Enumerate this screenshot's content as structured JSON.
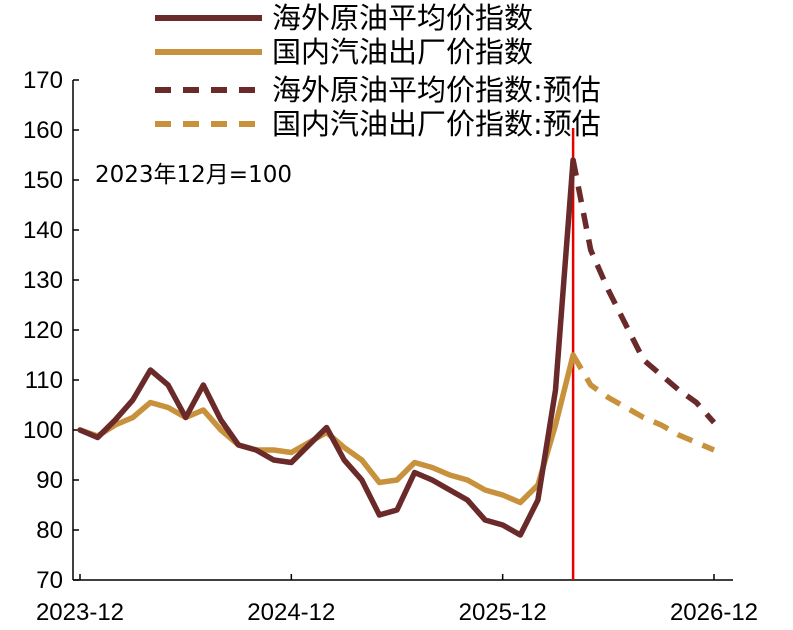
{
  "chart_data": {
    "type": "line",
    "annotation": "2023年12月=100",
    "x_start": "2023-12",
    "x_end": "2026-12",
    "x_ticks": [
      "2023-12",
      "2024-12",
      "2025-12",
      "2026-12"
    ],
    "ylim": [
      70,
      170
    ],
    "y_ticks": [
      70,
      80,
      90,
      100,
      110,
      120,
      130,
      140,
      150,
      160,
      170
    ],
    "grid": false,
    "legend_position": "top",
    "vline_x": "2026-04",
    "series": [
      {
        "name": "海外原油平均价指数",
        "color": "#6b2a2a",
        "dashed": false,
        "x": [
          "2023-12",
          "2024-01",
          "2024-02",
          "2024-03",
          "2024-04",
          "2024-05",
          "2024-06",
          "2024-07",
          "2024-08",
          "2024-09",
          "2024-10",
          "2024-11",
          "2024-12",
          "2025-01",
          "2025-02",
          "2025-03",
          "2025-04",
          "2025-05",
          "2025-06",
          "2025-07",
          "2025-08",
          "2025-09",
          "2025-10",
          "2025-11",
          "2025-12",
          "2026-01",
          "2026-02",
          "2026-03",
          "2026-04"
        ],
        "values": [
          100,
          98.5,
          102,
          106,
          112,
          109,
          102.5,
          109,
          102,
          97,
          96,
          94,
          93.5,
          97,
          100.5,
          94,
          90,
          83,
          84,
          91.5,
          90,
          88,
          86,
          82,
          81,
          79,
          86,
          108,
          154
        ]
      },
      {
        "name": "国内汽油出厂价指数",
        "color": "#c8913c",
        "dashed": false,
        "x": [
          "2023-12",
          "2024-01",
          "2024-02",
          "2024-03",
          "2024-04",
          "2024-05",
          "2024-06",
          "2024-07",
          "2024-08",
          "2024-09",
          "2024-10",
          "2024-11",
          "2024-12",
          "2025-01",
          "2025-02",
          "2025-03",
          "2025-04",
          "2025-05",
          "2025-06",
          "2025-07",
          "2025-08",
          "2025-09",
          "2025-10",
          "2025-11",
          "2025-12",
          "2026-01",
          "2026-02",
          "2026-03",
          "2026-04"
        ],
        "values": [
          100,
          98.8,
          101,
          102.5,
          105.5,
          104.5,
          102.5,
          104,
          100,
          97,
          96,
          96,
          95.5,
          97.5,
          99.5,
          96.5,
          94,
          89.5,
          90,
          93.5,
          92.5,
          91,
          90,
          88,
          87,
          85.5,
          89,
          101,
          115
        ]
      },
      {
        "name": "海外原油平均价指数:预估",
        "color": "#6b2a2a",
        "dashed": true,
        "x": [
          "2026-04",
          "2026-05",
          "2026-06",
          "2026-07",
          "2026-08",
          "2026-09",
          "2026-10",
          "2026-11",
          "2026-12"
        ],
        "values": [
          154,
          136,
          128,
          121,
          114,
          111,
          108,
          105.5,
          101.5
        ]
      },
      {
        "name": "国内汽油出厂价指数:预估",
        "color": "#c8913c",
        "dashed": true,
        "x": [
          "2026-04",
          "2026-05",
          "2026-06",
          "2026-07",
          "2026-08",
          "2026-09",
          "2026-10",
          "2026-11",
          "2026-12"
        ],
        "values": [
          115,
          109,
          106.5,
          104.5,
          102.5,
          101,
          99,
          97.5,
          96
        ]
      }
    ]
  },
  "colors": {
    "axis": "#000000",
    "vline": "#e60000"
  }
}
